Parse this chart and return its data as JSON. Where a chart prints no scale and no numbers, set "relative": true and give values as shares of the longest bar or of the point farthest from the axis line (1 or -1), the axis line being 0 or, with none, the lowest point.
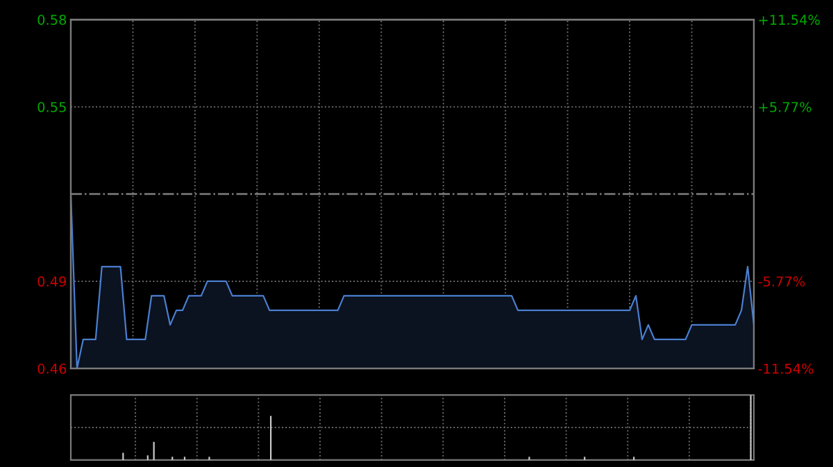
{
  "chart_data": [
    {
      "type": "area",
      "categories": [
        null,
        null,
        null,
        null,
        null,
        null,
        null,
        null,
        null,
        null,
        null,
        null,
        null,
        null,
        null,
        null,
        null,
        null,
        null,
        null,
        null,
        null,
        null,
        null,
        null,
        null,
        null,
        null,
        null,
        null,
        null,
        null,
        null,
        null,
        null,
        null,
        null,
        null,
        null,
        null,
        null,
        null,
        null,
        null,
        null,
        null,
        null,
        null,
        null,
        null,
        null,
        null,
        null,
        null,
        null,
        null,
        null,
        null,
        null,
        null,
        null,
        null,
        null,
        null,
        null,
        null,
        null,
        null,
        null,
        null,
        null,
        null,
        null,
        null,
        null,
        null,
        null,
        null,
        null,
        null,
        null,
        null,
        null,
        null,
        null,
        null,
        null,
        null,
        null,
        null,
        null,
        null,
        null,
        null,
        null,
        null,
        null,
        null,
        null,
        null,
        null,
        null,
        null,
        null,
        null,
        null,
        null,
        null,
        null,
        null,
        null
      ],
      "series": [
        {
          "color": "#4a7fd0",
          "values": [
            0.52,
            0.46,
            0.47,
            0.47,
            0.47,
            0.495,
            0.495,
            0.495,
            0.495,
            0.47,
            0.47,
            0.47,
            0.47,
            0.485,
            0.485,
            0.485,
            0.475,
            0.48,
            0.48,
            0.485,
            0.485,
            0.485,
            0.49,
            0.49,
            0.49,
            0.49,
            0.485,
            0.485,
            0.485,
            0.485,
            0.485,
            0.485,
            0.48,
            0.48,
            0.48,
            0.48,
            0.48,
            0.48,
            0.48,
            0.48,
            0.48,
            0.48,
            0.48,
            0.48,
            0.485,
            0.485,
            0.485,
            0.485,
            0.485,
            0.485,
            0.485,
            0.485,
            0.485,
            0.485,
            0.485,
            0.485,
            0.485,
            0.485,
            0.485,
            0.485,
            0.485,
            0.485,
            0.485,
            0.485,
            0.485,
            0.485,
            0.485,
            0.485,
            0.485,
            0.485,
            0.485,
            0.485,
            0.48,
            0.48,
            0.48,
            0.48,
            0.48,
            0.48,
            0.48,
            0.48,
            0.48,
            0.48,
            0.48,
            0.48,
            0.48,
            0.48,
            0.48,
            0.48,
            0.48,
            0.48,
            0.48,
            0.485,
            0.47,
            0.475,
            0.47,
            0.47,
            0.47,
            0.47,
            0.47,
            0.47,
            0.475,
            0.475,
            0.475,
            0.475,
            0.475,
            0.475,
            0.475,
            0.475,
            0.48,
            0.495,
            0.475
          ]
        }
      ],
      "ylim": [
        0.46,
        0.58
      ],
      "yticks": [
        0.46,
        0.49,
        0.55,
        0.58
      ],
      "y2lim": [
        -11.54,
        11.54
      ],
      "y2ticks": [
        {
          "value": -11.54,
          "label": "-11.54%"
        },
        {
          "value": -5.77,
          "label": "-5.77%"
        },
        {
          "value": 5.77,
          "label": "+5.77%"
        },
        {
          "value": 11.54,
          "label": "+11.54%"
        }
      ],
      "ref_lines": [
        {
          "axis": "y",
          "value": 0.52,
          "color": "#808080",
          "line_style": "dashdot"
        }
      ],
      "grid": true,
      "line_style": "solid"
    },
    {
      "type": "bar",
      "relative": true,
      "color": "#c8c8c8",
      "grid": true,
      "categories": [
        null,
        null,
        null,
        null,
        null,
        null,
        null,
        null,
        null,
        null,
        null,
        null,
        null,
        null,
        null,
        null,
        null,
        null,
        null,
        null,
        null,
        null,
        null,
        null,
        null,
        null,
        null,
        null,
        null,
        null,
        null,
        null,
        null,
        null,
        null,
        null,
        null,
        null,
        null,
        null,
        null,
        null,
        null,
        null,
        null,
        null,
        null,
        null,
        null,
        null,
        null,
        null,
        null,
        null,
        null,
        null,
        null,
        null,
        null,
        null,
        null,
        null,
        null,
        null,
        null,
        null,
        null,
        null,
        null,
        null,
        null,
        null,
        null,
        null,
        null,
        null,
        null,
        null,
        null,
        null,
        null,
        null,
        null,
        null,
        null,
        null,
        null,
        null,
        null,
        null,
        null,
        null,
        null,
        null,
        null,
        null,
        null,
        null,
        null,
        null,
        null,
        null,
        null,
        null,
        null,
        null,
        null,
        null,
        null,
        null,
        null
      ],
      "values": [
        null,
        null,
        null,
        null,
        null,
        null,
        null,
        null,
        0.11,
        null,
        null,
        null,
        0.07,
        0.28,
        null,
        null,
        0.05,
        null,
        0.05,
        null,
        null,
        null,
        0.05,
        null,
        null,
        null,
        null,
        null,
        null,
        null,
        null,
        null,
        0.68,
        null,
        null,
        null,
        null,
        null,
        null,
        null,
        null,
        null,
        null,
        null,
        null,
        null,
        null,
        null,
        null,
        null,
        null,
        null,
        null,
        null,
        null,
        null,
        null,
        null,
        null,
        null,
        null,
        null,
        null,
        null,
        null,
        null,
        null,
        null,
        null,
        null,
        null,
        null,
        null,
        null,
        0.05,
        null,
        null,
        null,
        null,
        null,
        null,
        null,
        null,
        0.05,
        null,
        null,
        null,
        null,
        null,
        null,
        null,
        0.05,
        null,
        null,
        null,
        null,
        null,
        null,
        null,
        null,
        null,
        null,
        null,
        null,
        null,
        null,
        null,
        null,
        null,
        null,
        1
      ]
    }
  ]
}
